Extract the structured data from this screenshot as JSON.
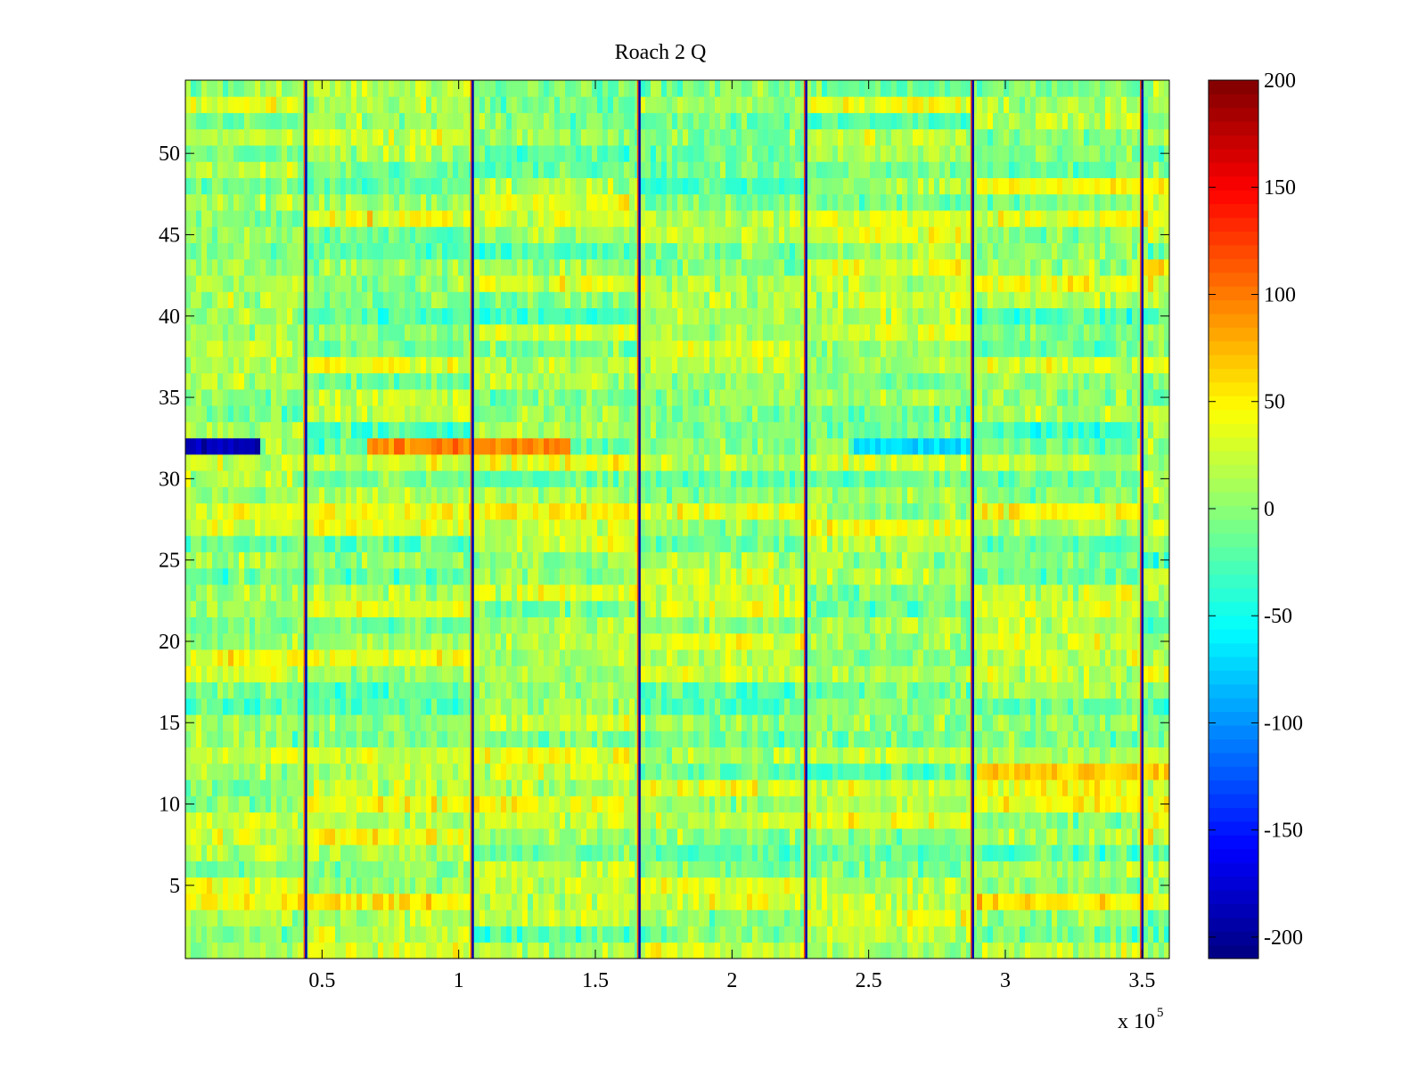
{
  "chart_data": {
    "type": "heatmap",
    "title": "Roach 2 Q",
    "xlabel": "",
    "ylabel": "",
    "x_multiplier_label": "x 10",
    "x_multiplier_exponent": "5",
    "xlim": [
      0,
      3.6
    ],
    "ylim": [
      0.5,
      54.5
    ],
    "x_ticks": [
      0.5,
      1,
      1.5,
      2,
      2.5,
      3,
      3.5
    ],
    "x_tick_labels": [
      "0.5",
      "1",
      "1.5",
      "2",
      "2.5",
      "3",
      "3.5"
    ],
    "y_ticks": [
      5,
      10,
      15,
      20,
      25,
      30,
      35,
      40,
      45,
      50
    ],
    "y_tick_labels": [
      "5",
      "10",
      "15",
      "20",
      "25",
      "30",
      "35",
      "40",
      "45",
      "50"
    ],
    "rows": 54,
    "colormap": "jet",
    "clim": [
      -210,
      200
    ],
    "colorbar_ticks": [
      200,
      150,
      100,
      50,
      0,
      -50,
      -100,
      -150,
      -200
    ],
    "colorbar_tick_labels": [
      "200",
      "150",
      "100",
      "50",
      "0",
      "-50",
      "-100",
      "-150",
      "-200"
    ],
    "vertical_discontinuities_x": [
      0.44,
      1.05,
      1.66,
      2.27,
      2.88,
      3.5
    ],
    "notable_bands": [
      {
        "row": 32,
        "x_start": 0.0,
        "x_end": 0.27,
        "value": -190
      },
      {
        "row": 32,
        "x_start": 0.66,
        "x_end": 1.4,
        "value": 95
      },
      {
        "row": 32,
        "x_start": 2.44,
        "x_end": 2.87,
        "value": -70
      },
      {
        "row": 12,
        "x_start": 2.9,
        "x_end": 3.6,
        "value": 70
      },
      {
        "row": 48,
        "x_start": 2.9,
        "x_end": 3.6,
        "value": 45
      }
    ],
    "typical_value_range": [
      -40,
      60
    ],
    "grid": false
  }
}
